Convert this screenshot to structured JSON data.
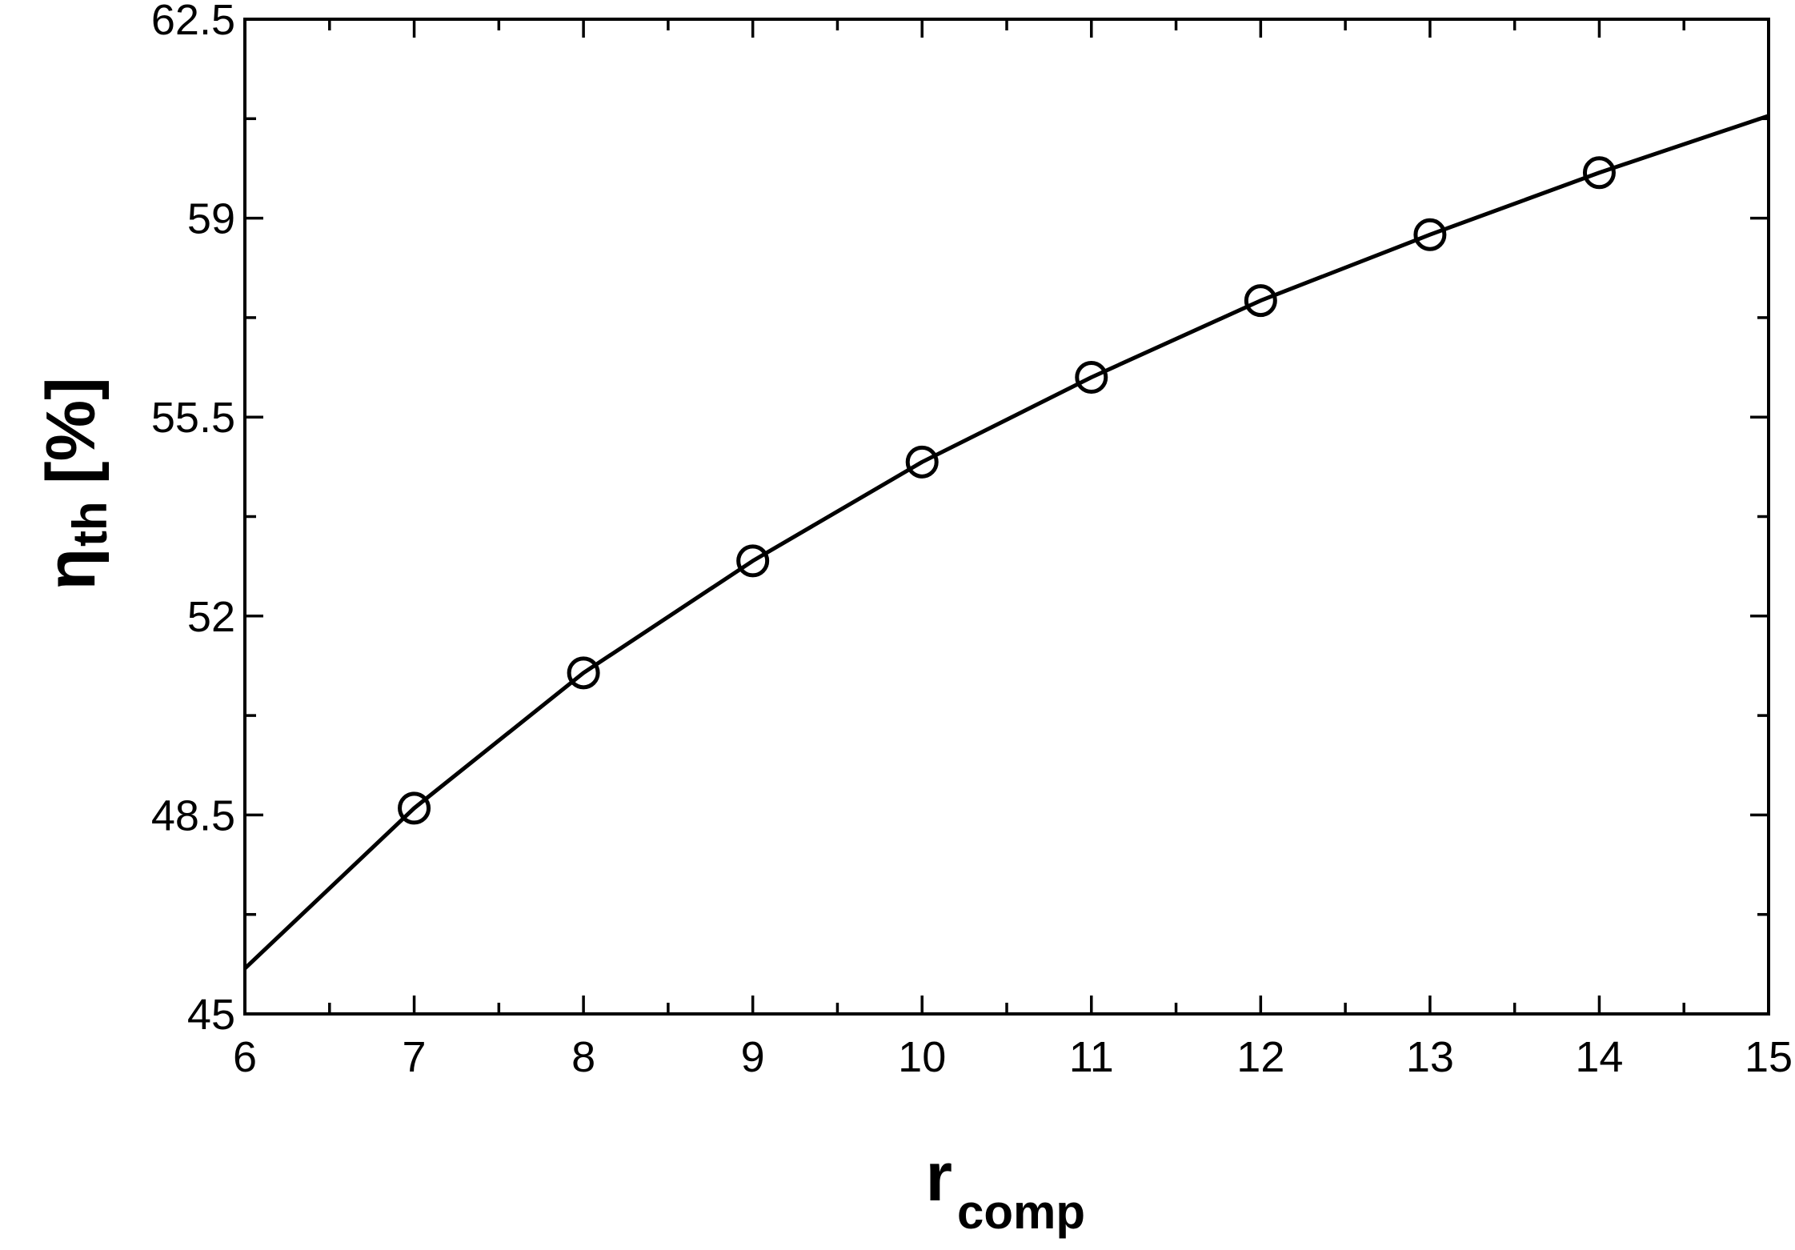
{
  "chart_data": {
    "type": "line",
    "xlabel": "r",
    "xlabel_sub": "comp",
    "ylabel": "η",
    "ylabel_sub": "th",
    "ylabel_unit": "[%]",
    "xlim": [
      6,
      15
    ],
    "xticks": [
      6,
      7,
      8,
      9,
      10,
      11,
      12,
      13,
      14,
      15
    ],
    "xminorticks": [
      6.5,
      7.5,
      8.5,
      9.5,
      10.5,
      11.5,
      12.5,
      13.5,
      14.5
    ],
    "ylim": [
      45,
      62.5
    ],
    "yticks": [
      45,
      48.5,
      52,
      55.5,
      59,
      62.5
    ],
    "yminorticks": [
      46.75,
      50.25,
      53.75,
      57.25,
      60.75
    ],
    "grid": false,
    "series": [
      {
        "color": "#000000",
        "marker": "none",
        "x": [
          6,
          7,
          8,
          9,
          10,
          11,
          12,
          13,
          14,
          15
        ],
        "values": [
          45.8,
          48.62,
          51.0,
          52.97,
          54.71,
          56.2,
          57.55,
          58.71,
          59.8,
          60.8
        ]
      },
      {
        "color": "#000000",
        "marker": "circle",
        "x": [
          7,
          8,
          9,
          10,
          11,
          12,
          13,
          14
        ],
        "values": [
          48.62,
          51.0,
          52.97,
          54.71,
          56.2,
          57.55,
          58.71,
          59.8
        ]
      }
    ]
  }
}
